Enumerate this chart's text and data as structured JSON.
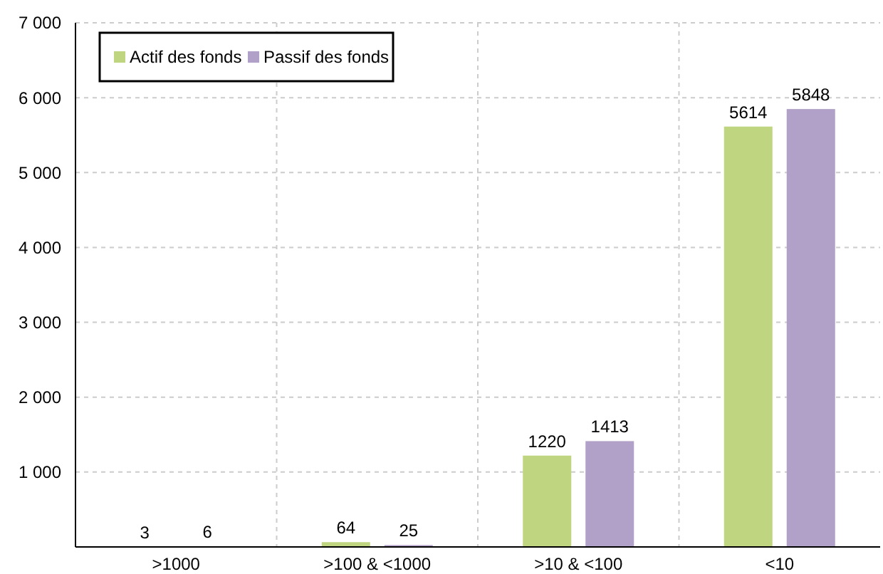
{
  "chart_data": {
    "type": "bar",
    "categories": [
      ">1000",
      ">100 & <1000",
      ">10 & <100",
      "<10"
    ],
    "series": [
      {
        "name": "Actif des fonds",
        "color": "#c0d580",
        "values": [
          3,
          64,
          1220,
          5614
        ]
      },
      {
        "name": "Passif des fonds",
        "color": "#b1a0c7",
        "values": [
          6,
          25,
          1413,
          5848
        ]
      }
    ],
    "ylim": [
      0,
      7000
    ],
    "yticks": [
      {
        "value": 1000,
        "label": "1 000"
      },
      {
        "value": 2000,
        "label": "2 000"
      },
      {
        "value": 3000,
        "label": "3 000"
      },
      {
        "value": 4000,
        "label": "4 000"
      },
      {
        "value": 5000,
        "label": "5 000"
      },
      {
        "value": 6000,
        "label": "6 000"
      },
      {
        "value": 7000,
        "label": "7 000"
      }
    ],
    "grid": true,
    "legend": "top left",
    "data_labels": true
  }
}
